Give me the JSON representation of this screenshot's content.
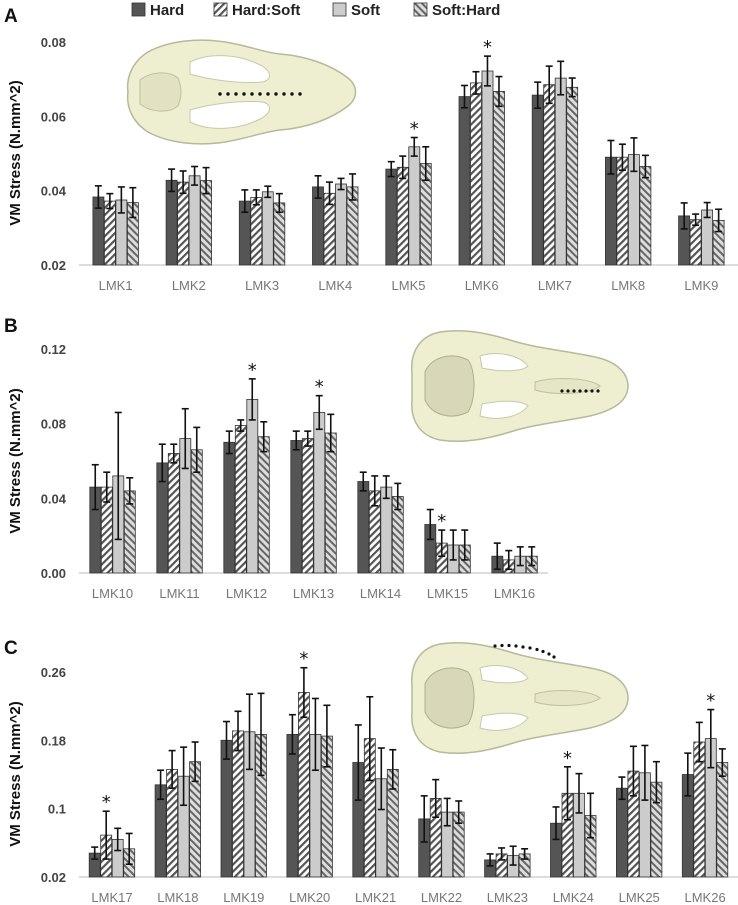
{
  "legend": {
    "items": [
      {
        "name": "Hard",
        "color": "#555555",
        "pattern": "solid"
      },
      {
        "name": "Hard:Soft",
        "color": "#555555",
        "pattern": "hatch-back"
      },
      {
        "name": "Soft",
        "color": "#cccccc",
        "pattern": "solid"
      },
      {
        "name": "Soft:Hard",
        "color": "#555555",
        "pattern": "hatch-fwd"
      }
    ]
  },
  "chart_data": [
    {
      "panel": "A",
      "type": "bar",
      "ylabel": "VM Stress (N.mm^2)",
      "ylim": [
        0.02,
        0.08
      ],
      "yticks": [
        "0.02",
        "0.04",
        "0.06",
        "0.08"
      ],
      "ytick_values": [
        0.02,
        0.04,
        0.06,
        0.08
      ],
      "categories": [
        "LMK1",
        "LMK2",
        "LMK3",
        "LMK4",
        "LMK5",
        "LMK6",
        "LMK7",
        "LMK8",
        "LMK9"
      ],
      "series": [
        {
          "name": "Hard",
          "values": [
            0.0383,
            0.0428,
            0.0372,
            0.041,
            0.0458,
            0.0653,
            0.0657,
            0.049,
            0.0332
          ],
          "errors": [
            0.003,
            0.003,
            0.003,
            0.003,
            0.002,
            0.003,
            0.0035,
            0.0045,
            0.0035
          ]
        },
        {
          "name": "Hard:Soft",
          "values": [
            0.0372,
            0.0423,
            0.0382,
            0.0393,
            0.0463,
            0.069,
            0.0685,
            0.049,
            0.0322
          ],
          "errors": [
            0.002,
            0.003,
            0.002,
            0.003,
            0.003,
            0.003,
            0.005,
            0.0035,
            0.0015
          ]
        },
        {
          "name": "Soft",
          "values": [
            0.0375,
            0.044,
            0.0397,
            0.0418,
            0.0518,
            0.0722,
            0.0703,
            0.0497,
            0.0348
          ],
          "errors": [
            0.0035,
            0.0025,
            0.0015,
            0.0015,
            0.0025,
            0.004,
            0.0045,
            0.0045,
            0.002
          ]
        },
        {
          "name": "Soft:Hard",
          "values": [
            0.0368,
            0.0427,
            0.0367,
            0.041,
            0.0473,
            0.0667,
            0.0678,
            0.0465,
            0.032
          ],
          "errors": [
            0.004,
            0.0035,
            0.0025,
            0.0035,
            0.0045,
            0.004,
            0.0025,
            0.003,
            0.003
          ]
        }
      ],
      "significance": [
        {
          "category": "LMK5",
          "series": "Soft",
          "label": "*"
        },
        {
          "category": "LMK6",
          "series": "Soft",
          "label": "*"
        }
      ]
    },
    {
      "panel": "B",
      "type": "bar",
      "ylabel": "VM Stress (N.mm^2)",
      "ylim": [
        0,
        0.12
      ],
      "yticks": [
        "0.00",
        "0.04",
        "0.08",
        "0.12"
      ],
      "ytick_values": [
        0.0,
        0.04,
        0.08,
        0.12
      ],
      "categories": [
        "LMK10",
        "LMK11",
        "LMK12",
        "LMK13",
        "LMK14",
        "LMK15",
        "LMK16"
      ],
      "series": [
        {
          "name": "Hard",
          "values": [
            0.046,
            0.059,
            0.07,
            0.071,
            0.049,
            0.026,
            0.009
          ],
          "errors": [
            0.012,
            0.01,
            0.006,
            0.005,
            0.005,
            0.008,
            0.007
          ]
        },
        {
          "name": "Hard:Soft",
          "values": [
            0.046,
            0.064,
            0.079,
            0.072,
            0.044,
            0.016,
            0.007
          ],
          "errors": [
            0.008,
            0.005,
            0.003,
            0.004,
            0.008,
            0.007,
            0.005
          ]
        },
        {
          "name": "Soft",
          "values": [
            0.052,
            0.072,
            0.093,
            0.086,
            0.046,
            0.015,
            0.009
          ],
          "errors": [
            0.034,
            0.016,
            0.011,
            0.009,
            0.006,
            0.008,
            0.005
          ]
        },
        {
          "name": "Soft:Hard",
          "values": [
            0.044,
            0.066,
            0.073,
            0.075,
            0.041,
            0.015,
            0.009
          ],
          "errors": [
            0.007,
            0.012,
            0.008,
            0.01,
            0.007,
            0.008,
            0.005
          ]
        }
      ],
      "significance": [
        {
          "category": "LMK12",
          "series": "Soft",
          "label": "*"
        },
        {
          "category": "LMK13",
          "series": "Soft",
          "label": "*"
        },
        {
          "category": "LMK15",
          "series": "Hard:Soft",
          "label": "*"
        }
      ]
    },
    {
      "panel": "C",
      "type": "bar",
      "ylabel": "VM Stress (N.mm^2)",
      "ylim": [
        0.02,
        0.26
      ],
      "yticks": [
        "0.02",
        "0.1",
        "0.18",
        "0.26"
      ],
      "ytick_values": [
        0.02,
        0.1,
        0.18,
        0.26
      ],
      "categories": [
        "LMK17",
        "LMK18",
        "LMK19",
        "LMK20",
        "LMK21",
        "LMK22",
        "LMK23",
        "LMK24",
        "LMK25",
        "LMK26"
      ],
      "series": [
        {
          "name": "Hard",
          "values": [
            0.048,
            0.128,
            0.18,
            0.187,
            0.154,
            0.088,
            0.04,
            0.083,
            0.124,
            0.14
          ],
          "errors": [
            0.007,
            0.017,
            0.022,
            0.023,
            0.044,
            0.027,
            0.007,
            0.019,
            0.013,
            0.025
          ]
        },
        {
          "name": "Hard:Soft",
          "values": [
            0.069,
            0.146,
            0.191,
            0.236,
            0.182,
            0.112,
            0.047,
            0.118,
            0.144,
            0.178
          ],
          "errors": [
            0.028,
            0.022,
            0.023,
            0.029,
            0.049,
            0.022,
            0.007,
            0.031,
            0.029,
            0.023
          ]
        },
        {
          "name": "Soft",
          "values": [
            0.064,
            0.138,
            0.19,
            0.187,
            0.135,
            0.096,
            0.045,
            0.118,
            0.142,
            0.182
          ],
          "errors": [
            0.013,
            0.034,
            0.044,
            0.042,
            0.036,
            0.016,
            0.011,
            0.023,
            0.032,
            0.034
          ]
        },
        {
          "name": "Soft:Hard",
          "values": [
            0.053,
            0.155,
            0.187,
            0.185,
            0.146,
            0.096,
            0.047,
            0.092,
            0.131,
            0.154
          ],
          "errors": [
            0.018,
            0.023,
            0.048,
            0.036,
            0.023,
            0.013,
            0.006,
            0.026,
            0.024,
            0.016
          ]
        }
      ],
      "significance": [
        {
          "category": "LMK17",
          "series": "Hard:Soft",
          "label": "*"
        },
        {
          "category": "LMK20",
          "series": "Hard:Soft",
          "label": "*"
        },
        {
          "category": "LMK24",
          "series": "Hard:Soft",
          "label": "*"
        },
        {
          "category": "LMK26",
          "series": "Soft",
          "label": "*"
        }
      ]
    }
  ]
}
